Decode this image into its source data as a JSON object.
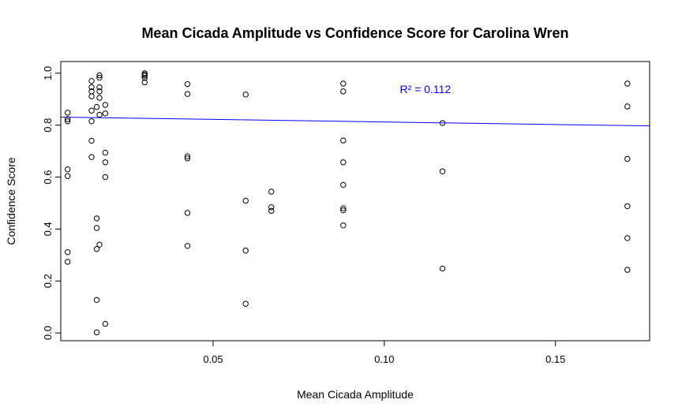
{
  "chart_data": {
    "type": "scatter",
    "title": "Mean Cicada Amplitude vs Confidence Score for Carolina Wren",
    "xlabel": "Mean Cicada Amplitude",
    "ylabel": "Confidence Score",
    "xlim": [
      0.0055,
      0.1775
    ],
    "ylim": [
      -0.03,
      1.045
    ],
    "x_ticks": [
      0.05,
      0.1,
      0.15
    ],
    "x_tick_labels": [
      "0.05",
      "0.10",
      "0.15"
    ],
    "y_ticks": [
      0.0,
      0.2,
      0.4,
      0.6,
      0.8,
      1.0
    ],
    "y_tick_labels": [
      "0.0",
      "0.2",
      "0.4",
      "0.6",
      "0.8",
      "1.0"
    ],
    "grid": false,
    "marker": "open-circle",
    "marker_color": "#000000",
    "trendline": {
      "x": [
        0.0055,
        0.1775
      ],
      "y": [
        0.831,
        0.797
      ],
      "color": "#0000ff"
    },
    "annotation": {
      "text": "R² = 0.112",
      "x": 0.112,
      "y": 0.938,
      "color": "#0000ff"
    },
    "points": [
      {
        "x": 0.0075,
        "y": 0.848
      },
      {
        "x": 0.0075,
        "y": 0.823
      },
      {
        "x": 0.0075,
        "y": 0.815
      },
      {
        "x": 0.0075,
        "y": 0.63
      },
      {
        "x": 0.0075,
        "y": 0.604
      },
      {
        "x": 0.0075,
        "y": 0.311
      },
      {
        "x": 0.0075,
        "y": 0.274
      },
      {
        "x": 0.0145,
        "y": 0.97
      },
      {
        "x": 0.0145,
        "y": 0.946
      },
      {
        "x": 0.0145,
        "y": 0.93
      },
      {
        "x": 0.0145,
        "y": 0.911
      },
      {
        "x": 0.0145,
        "y": 0.856
      },
      {
        "x": 0.0145,
        "y": 0.815
      },
      {
        "x": 0.0145,
        "y": 0.74
      },
      {
        "x": 0.0145,
        "y": 0.677
      },
      {
        "x": 0.016,
        "y": 0.87
      },
      {
        "x": 0.016,
        "y": 0.441
      },
      {
        "x": 0.016,
        "y": 0.404
      },
      {
        "x": 0.016,
        "y": 0.323
      },
      {
        "x": 0.016,
        "y": 0.127
      },
      {
        "x": 0.016,
        "y": 0.002
      },
      {
        "x": 0.0168,
        "y": 0.992
      },
      {
        "x": 0.0168,
        "y": 0.983
      },
      {
        "x": 0.0168,
        "y": 0.946
      },
      {
        "x": 0.0168,
        "y": 0.93
      },
      {
        "x": 0.0168,
        "y": 0.905
      },
      {
        "x": 0.0168,
        "y": 0.84
      },
      {
        "x": 0.0168,
        "y": 0.34
      },
      {
        "x": 0.0185,
        "y": 0.878
      },
      {
        "x": 0.0185,
        "y": 0.845
      },
      {
        "x": 0.0185,
        "y": 0.694
      },
      {
        "x": 0.0185,
        "y": 0.657
      },
      {
        "x": 0.0185,
        "y": 0.6
      },
      {
        "x": 0.0185,
        "y": 0.035
      },
      {
        "x": 0.03,
        "y": 1.0
      },
      {
        "x": 0.03,
        "y": 0.995
      },
      {
        "x": 0.03,
        "y": 0.99
      },
      {
        "x": 0.03,
        "y": 0.982
      },
      {
        "x": 0.03,
        "y": 0.965
      },
      {
        "x": 0.0425,
        "y": 0.958
      },
      {
        "x": 0.0425,
        "y": 0.92
      },
      {
        "x": 0.0425,
        "y": 0.68
      },
      {
        "x": 0.0425,
        "y": 0.672
      },
      {
        "x": 0.0425,
        "y": 0.462
      },
      {
        "x": 0.0425,
        "y": 0.335
      },
      {
        "x": 0.0595,
        "y": 0.918
      },
      {
        "x": 0.0595,
        "y": 0.509
      },
      {
        "x": 0.0595,
        "y": 0.317
      },
      {
        "x": 0.0595,
        "y": 0.112
      },
      {
        "x": 0.067,
        "y": 0.544
      },
      {
        "x": 0.067,
        "y": 0.484
      },
      {
        "x": 0.067,
        "y": 0.47
      },
      {
        "x": 0.088,
        "y": 0.96
      },
      {
        "x": 0.088,
        "y": 0.93
      },
      {
        "x": 0.088,
        "y": 0.741
      },
      {
        "x": 0.088,
        "y": 0.657
      },
      {
        "x": 0.088,
        "y": 0.57
      },
      {
        "x": 0.088,
        "y": 0.48
      },
      {
        "x": 0.088,
        "y": 0.472
      },
      {
        "x": 0.088,
        "y": 0.414
      },
      {
        "x": 0.117,
        "y": 0.808
      },
      {
        "x": 0.117,
        "y": 0.622
      },
      {
        "x": 0.117,
        "y": 0.248
      },
      {
        "x": 0.171,
        "y": 0.96
      },
      {
        "x": 0.171,
        "y": 0.872
      },
      {
        "x": 0.171,
        "y": 0.67
      },
      {
        "x": 0.171,
        "y": 0.488
      },
      {
        "x": 0.171,
        "y": 0.365
      },
      {
        "x": 0.171,
        "y": 0.243
      }
    ]
  }
}
